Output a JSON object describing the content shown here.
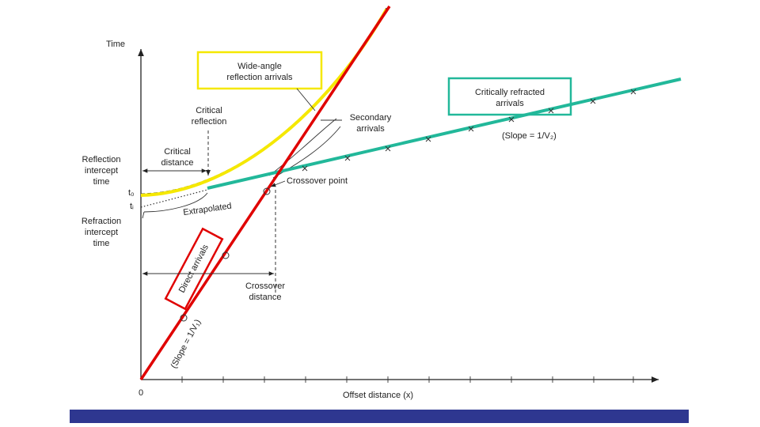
{
  "axes": {
    "y_label": "Time",
    "x_label": "Offset distance (x)",
    "origin": "0"
  },
  "labels": {
    "wide_angle": [
      "Wide-angle",
      "reflection arrivals"
    ],
    "critical_reflection": [
      "Critical",
      "reflection"
    ],
    "secondary": [
      "Secondary",
      "arrivals"
    ],
    "critically_refracted": [
      "Critically refracted",
      "arrivals"
    ],
    "slope_v2": "(Slope = 1/V₂)",
    "critical_distance": [
      "Critical",
      "distance"
    ],
    "reflection_intercept": [
      "Reflection",
      "intercept",
      "time"
    ],
    "t0": "t₀",
    "ti": "tᵢ",
    "refraction_intercept": [
      "Refraction",
      "intercept",
      "time"
    ],
    "extrapolated": "Extrapolated",
    "crossover_point": "Crossover point",
    "direct_arrivals": "Direct arrivals",
    "crossover_distance": [
      "Crossover",
      "distance"
    ],
    "slope_v1": "(Slope = 1/V₁)"
  }
}
